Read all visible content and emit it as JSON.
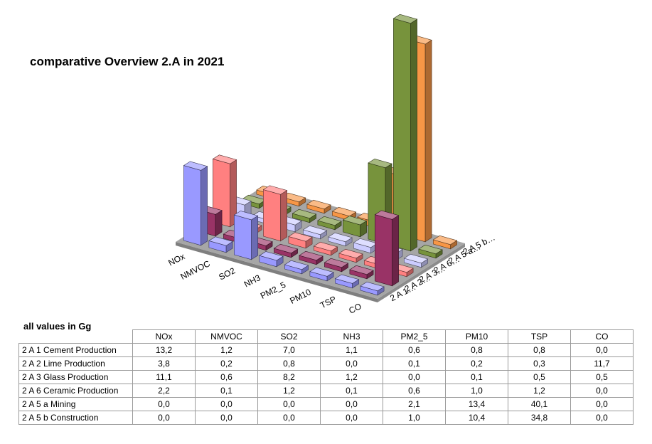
{
  "chart_data": {
    "type": "bar",
    "title": "comparative Overview 2.A in 2021",
    "units_note": "all values in Gg",
    "categories": [
      "NOx",
      "NMVOC",
      "SO2",
      "NH3",
      "PM2_5",
      "PM10",
      "TSP",
      "CO"
    ],
    "depth_axis_labels": [
      "2 A 1…",
      "2 A 2…",
      "2 A 3…",
      "2 A 6…",
      "2 A 5 a…",
      "2 A 5 b…"
    ],
    "series": [
      {
        "name": "2 A 1 Cement Production",
        "table_values": [
          "13,2",
          "1,2",
          "7,0",
          "1,1",
          "0,6",
          "0,8",
          "0,8",
          "0,0"
        ],
        "values": [
          13.2,
          1.2,
          7.0,
          1.1,
          0.6,
          0.8,
          0.8,
          0.0
        ],
        "color": "#9999ff"
      },
      {
        "name": "2 A 2 Lime Production",
        "table_values": [
          "3,8",
          "0,2",
          "0,8",
          "0,0",
          "0,1",
          "0,2",
          "0,3",
          "11,7"
        ],
        "values": [
          3.8,
          0.2,
          0.8,
          0.0,
          0.1,
          0.2,
          0.3,
          11.7
        ],
        "color": "#993366"
      },
      {
        "name": "2 A 3 Glass Production",
        "table_values": [
          "11,1",
          "0,6",
          "8,2",
          "1,2",
          "0,0",
          "0,1",
          "0,5",
          "0,5"
        ],
        "values": [
          11.1,
          0.6,
          8.2,
          1.2,
          0.0,
          0.1,
          0.5,
          0.5
        ],
        "color": "#ff8080"
      },
      {
        "name": "2 A 6 Ceramic Production",
        "table_values": [
          "2,2",
          "0,1",
          "1,2",
          "0,1",
          "0,6",
          "1,0",
          "1,2",
          "0,0"
        ],
        "values": [
          2.2,
          0.1,
          1.2,
          0.1,
          0.6,
          1.0,
          1.2,
          0.0
        ],
        "color": "#ccccff"
      },
      {
        "name": "2 A 5 a Mining",
        "table_values": [
          "0,0",
          "0,0",
          "0,0",
          "0,0",
          "2,1",
          "13,4",
          "40,1",
          "0,0"
        ],
        "values": [
          0.0,
          0.0,
          0.0,
          0.0,
          2.1,
          13.4,
          40.1,
          0.0
        ],
        "color": "#77933c"
      },
      {
        "name": "2 A 5 b Construction",
        "table_values": [
          "0,0",
          "0,0",
          "0,0",
          "0,0",
          "1,0",
          "10,4",
          "34,8",
          "0,0"
        ],
        "values": [
          0.0,
          0.0,
          0.0,
          0.0,
          1.0,
          10.4,
          34.8,
          0.0
        ],
        "color": "#f79646"
      }
    ],
    "floor_color": "#a6a6a6",
    "grid": false,
    "legend": "none"
  }
}
